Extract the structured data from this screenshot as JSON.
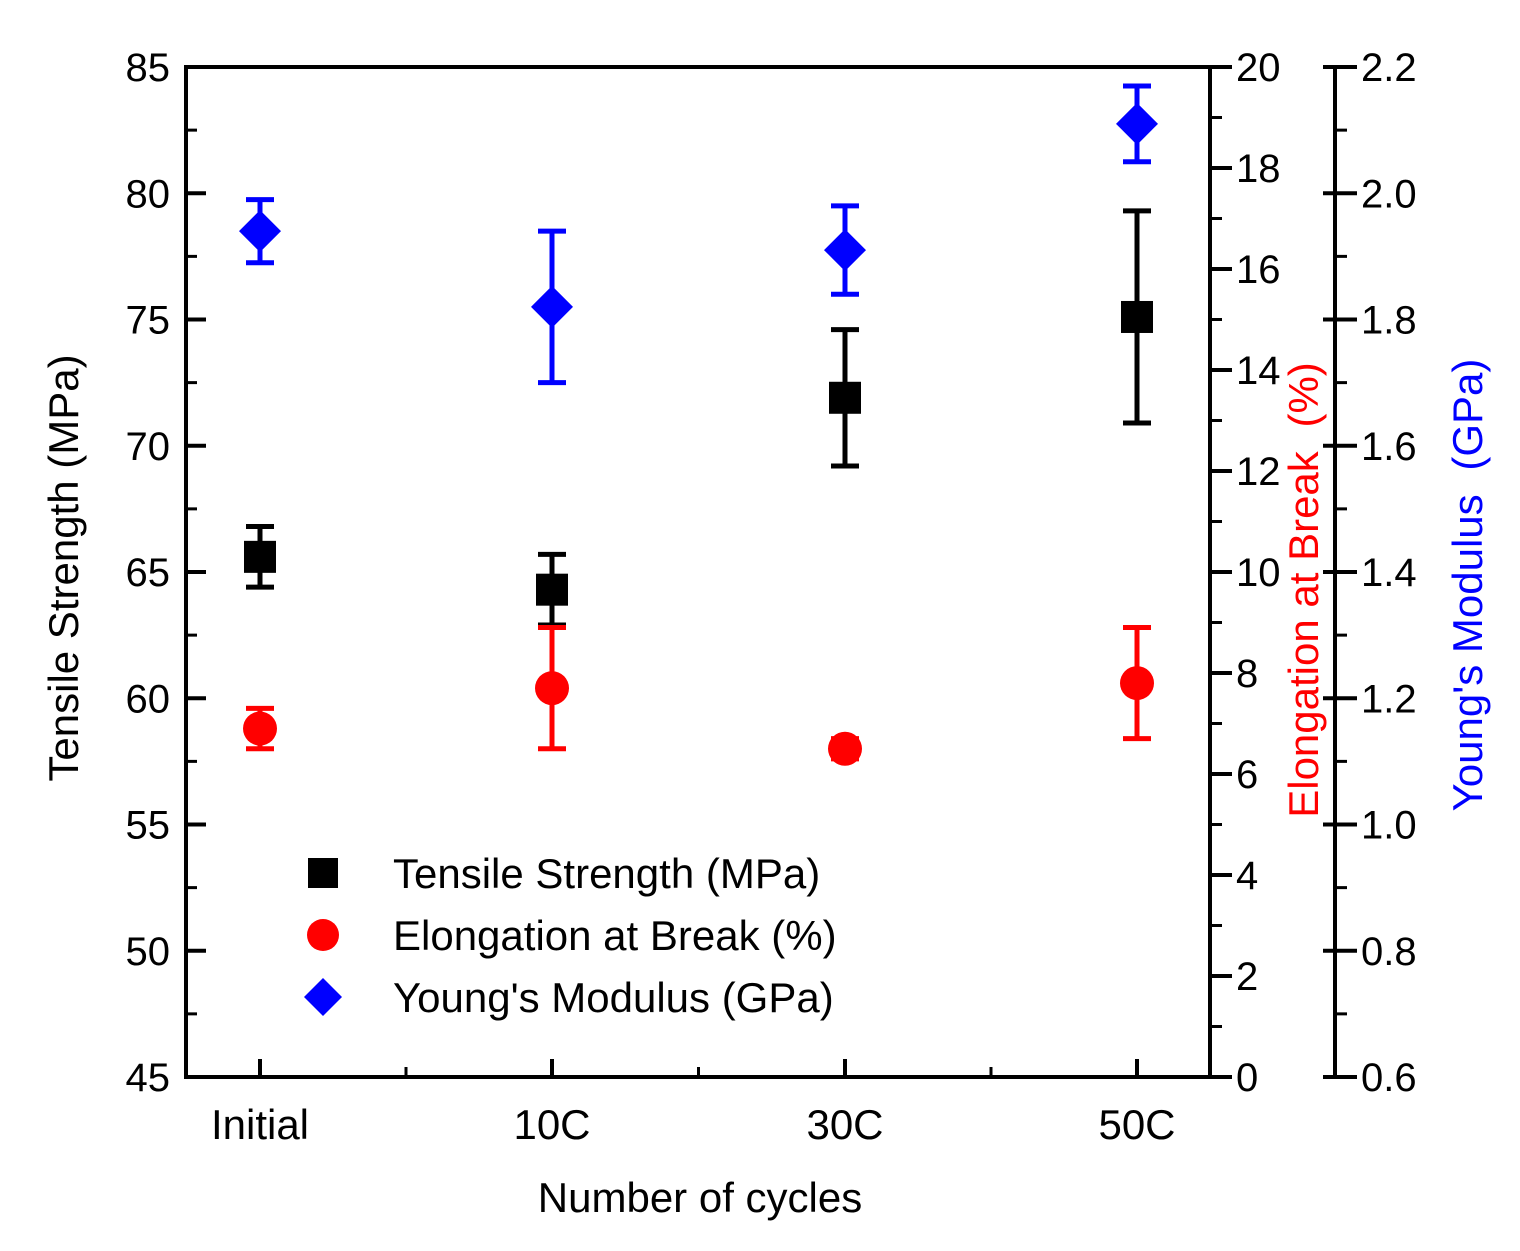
{
  "chart_data": {
    "type": "scatter",
    "xlabel": "Number of cycles",
    "categories": [
      "Initial",
      "10C",
      "30C",
      "50C"
    ],
    "axes": {
      "left": {
        "label": "Tensile Strength (MPa)",
        "color": "#000000",
        "ylim": [
          45,
          85
        ],
        "ticks": [
          45,
          50,
          55,
          60,
          65,
          70,
          75,
          80,
          85
        ]
      },
      "right1": {
        "label_part1": "Elongation at Break",
        "label_part2": "(%)",
        "label_part1_color": "#ff0000",
        "label_part2_color": "#ff0000",
        "ylim": [
          0,
          20
        ],
        "ticks": [
          0,
          2,
          4,
          6,
          8,
          10,
          12,
          14,
          16,
          18,
          20
        ]
      },
      "right2": {
        "label_part1": "Young's Modulus",
        "label_part2": "(GPa)",
        "label_part1_color": "#0000ff",
        "label_part2_color": "#0000ff",
        "ylim": [
          0.6,
          2.2
        ],
        "ticks": [
          0.6,
          0.8,
          1.0,
          1.2,
          1.4,
          1.6,
          1.8,
          2.0,
          2.2
        ],
        "tick_labels": [
          "0.6",
          "0.8",
          "1.0",
          "1.2",
          "1.4",
          "1.6",
          "1.8",
          "2.0",
          "2.2"
        ]
      }
    },
    "series": [
      {
        "name": "Tensile Strength (MPa)",
        "axis": "left",
        "marker": "square",
        "color": "#000000",
        "values": [
          65.6,
          64.3,
          71.9,
          75.1
        ],
        "errors": [
          1.2,
          1.4,
          2.7,
          4.2
        ]
      },
      {
        "name": "Elongation at Break (%)",
        "axis": "right1",
        "marker": "circle",
        "color": "#ff0000",
        "values": [
          6.9,
          7.7,
          6.5,
          7.8
        ],
        "errors": [
          0.4,
          1.2,
          0.2,
          1.1
        ]
      },
      {
        "name": "Young's Modulus (GPa)",
        "axis": "right2",
        "marker": "diamond",
        "color": "#0000ff",
        "values": [
          1.94,
          1.82,
          1.91,
          2.11
        ],
        "errors": [
          0.05,
          0.12,
          0.07,
          0.06
        ]
      }
    ],
    "legend": {
      "position": "bottom-left",
      "items": [
        "Tensile Strength (MPa)",
        "Elongation at Break (%)",
        "Young's Modulus (GPa)"
      ]
    }
  }
}
